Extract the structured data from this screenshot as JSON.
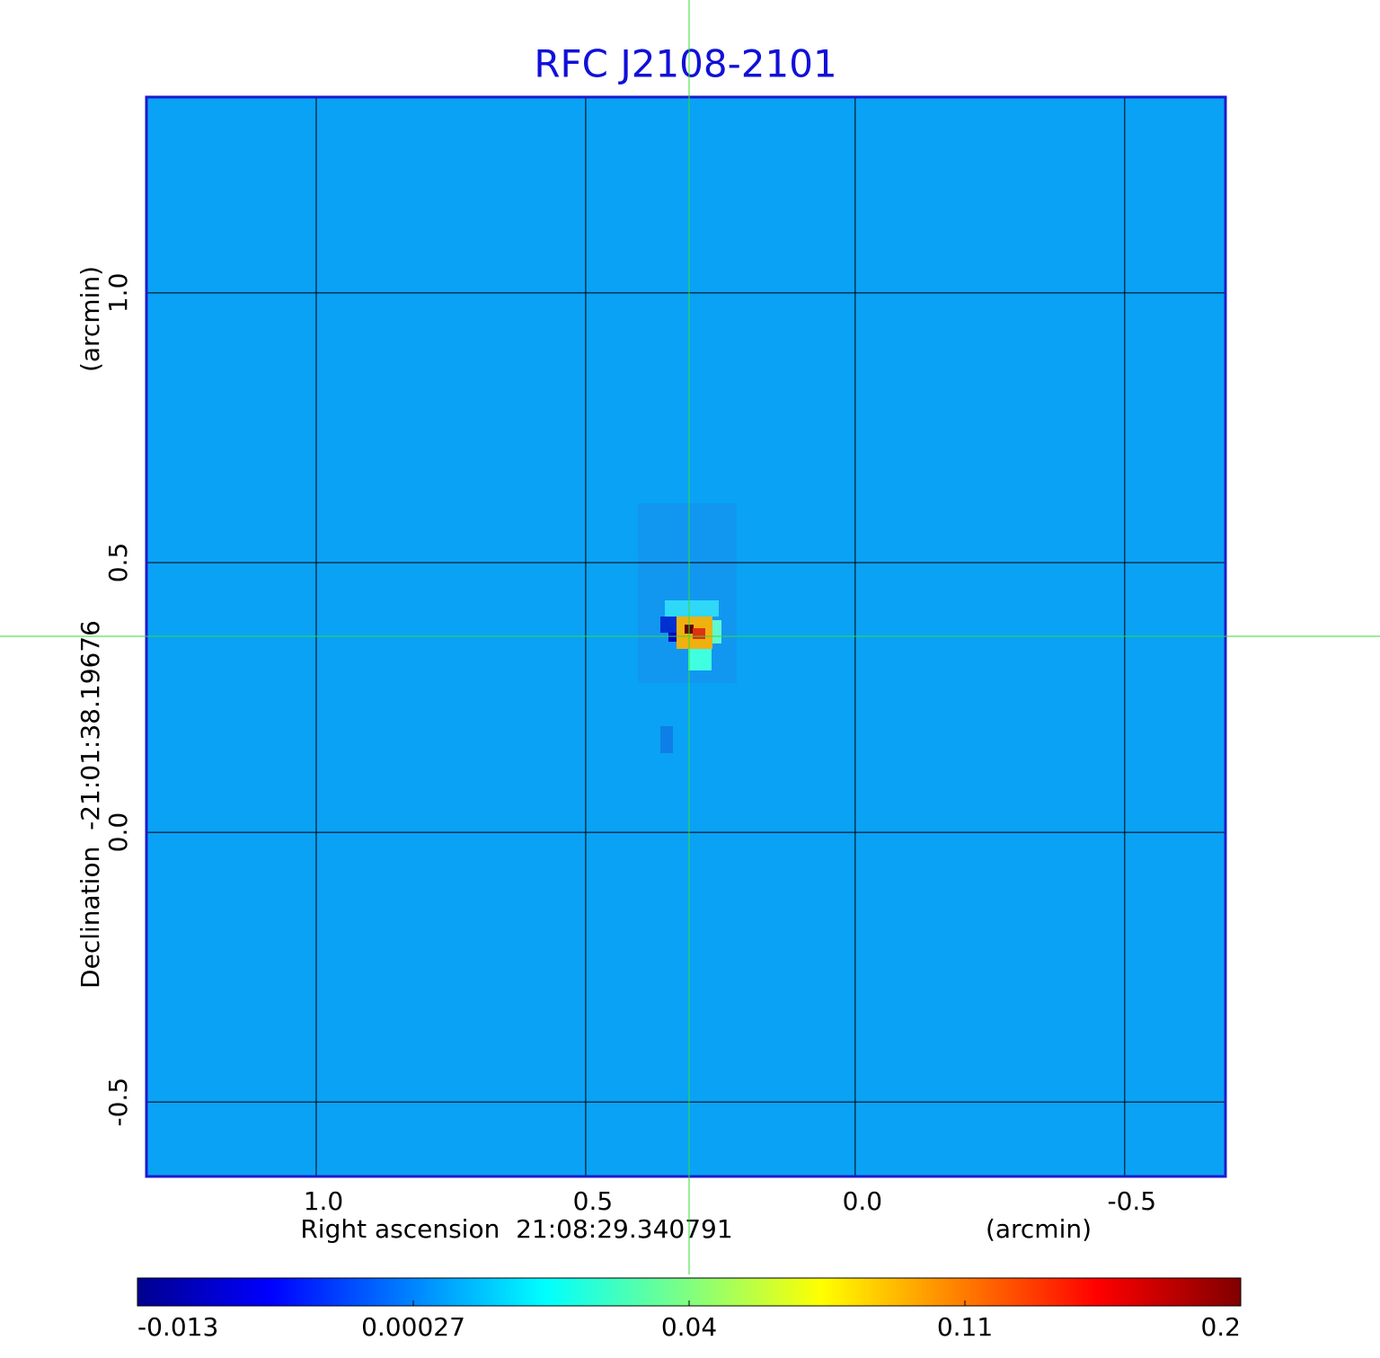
{
  "chart_data": {
    "type": "image",
    "title": "RFC J2108-2101",
    "x_label": "Right ascension  21:08:29.340791",
    "x_unit": "(arcmin)",
    "y_label": "Declination  -21:01:38.19676",
    "y_unit": "(arcmin)",
    "xlim": [
      1.315,
      -0.687
    ],
    "xticks": [
      {
        "value": 1,
        "label": "1.0"
      },
      0.5,
      {
        "value": 0,
        "label": "0.0"
      },
      -0.5
    ],
    "ylim": [
      -0.638,
      1.363
    ],
    "yticks": [
      {
        "value": 1,
        "label": "1.0"
      },
      0.5,
      {
        "value": 0,
        "label": "0.0"
      },
      -0.5
    ],
    "grid": true,
    "colorbar": {
      "lim": [
        -0.013,
        0.2
      ],
      "ticks": [
        -0.013,
        0.00027,
        0.04,
        0.11,
        0.2
      ]
    }
  }
}
